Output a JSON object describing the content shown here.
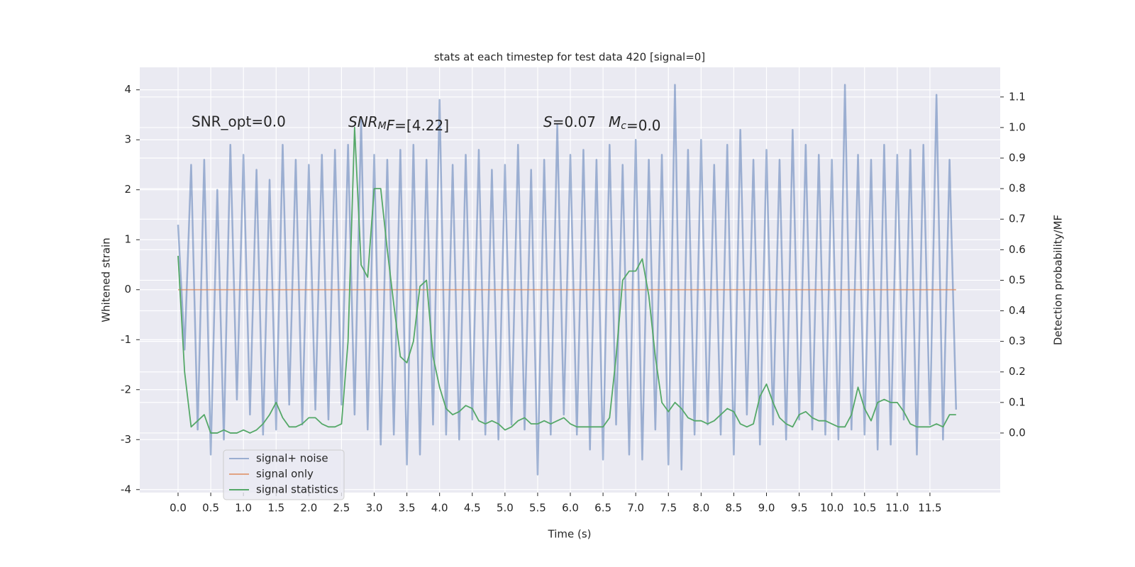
{
  "chart_data": {
    "type": "line",
    "title": "stats at each timestep for test data 420 [signal=0]",
    "xlabel": "Time (s)",
    "ylabel": "Whitened strain",
    "y2label": "Detection probability/MF",
    "annotations": [
      {
        "text": "SNR_opt=0.0",
        "math": false
      },
      {
        "text": "SNR_MF=[4.22]",
        "math": true
      },
      {
        "text": "S=0.07",
        "math": true
      },
      {
        "text": "M_c=0.0",
        "math": true
      }
    ],
    "x": [
      0.0,
      0.1,
      0.2,
      0.3,
      0.4,
      0.5,
      0.6,
      0.7,
      0.8,
      0.9,
      1.0,
      1.1,
      1.2,
      1.3,
      1.4,
      1.5,
      1.6,
      1.7,
      1.8,
      1.9,
      2.0,
      2.1,
      2.2,
      2.3,
      2.4,
      2.5,
      2.6,
      2.7,
      2.8,
      2.9,
      3.0,
      3.1,
      3.2,
      3.3,
      3.4,
      3.5,
      3.6,
      3.7,
      3.8,
      3.9,
      4.0,
      4.1,
      4.2,
      4.3,
      4.4,
      4.5,
      4.6,
      4.7,
      4.8,
      4.9,
      5.0,
      5.1,
      5.2,
      5.3,
      5.4,
      5.5,
      5.6,
      5.7,
      5.8,
      5.9,
      6.0,
      6.1,
      6.2,
      6.3,
      6.4,
      6.5,
      6.6,
      6.7,
      6.8,
      6.9,
      7.0,
      7.1,
      7.2,
      7.3,
      7.4,
      7.5,
      7.6,
      7.7,
      7.8,
      7.9,
      8.0,
      8.1,
      8.2,
      8.3,
      8.4,
      8.5,
      8.6,
      8.7,
      8.8,
      8.9,
      9.0,
      9.1,
      9.2,
      9.3,
      9.4,
      9.5,
      9.6,
      9.7,
      9.8,
      9.9,
      10.0,
      10.1,
      10.2,
      10.3,
      10.4,
      10.5,
      10.6,
      10.7,
      10.8,
      10.9,
      11.0,
      11.1,
      11.2,
      11.3,
      11.4,
      11.5,
      11.6,
      11.7,
      11.8,
      11.9
    ],
    "series": [
      {
        "name": "signal+ noise",
        "color": "#4c72b0",
        "opacity": 0.5,
        "values": [
          1.3,
          -1.2,
          2.5,
          -2.8,
          2.6,
          -3.3,
          2.0,
          -3.0,
          2.9,
          -2.2,
          2.7,
          -2.5,
          2.4,
          -2.9,
          2.2,
          -2.8,
          2.9,
          -2.3,
          2.6,
          -2.7,
          2.5,
          -2.4,
          2.7,
          -2.6,
          2.8,
          -2.3,
          2.9,
          -2.5,
          3.4,
          -2.8,
          2.7,
          -3.1,
          2.6,
          -2.9,
          2.8,
          -3.5,
          2.9,
          -3.3,
          2.6,
          -2.7,
          3.8,
          -2.9,
          2.5,
          -3.0,
          2.7,
          -2.6,
          2.8,
          -2.9,
          2.4,
          -3.0,
          2.5,
          -2.7,
          2.9,
          -2.8,
          2.4,
          -3.7,
          2.6,
          -2.9,
          3.3,
          -2.5,
          2.7,
          -2.9,
          2.8,
          -3.2,
          2.6,
          -3.4,
          2.9,
          -2.7,
          2.5,
          -3.3,
          3.0,
          -3.4,
          2.6,
          -2.8,
          2.7,
          -3.5,
          4.1,
          -3.6,
          2.8,
          -2.9,
          3.0,
          -2.7,
          2.5,
          -2.9,
          2.9,
          -3.3,
          3.2,
          -2.5,
          2.6,
          -3.1,
          2.8,
          -2.7,
          2.6,
          -3.0,
          3.2,
          -2.6,
          2.9,
          -2.8,
          2.7,
          -2.9,
          2.6,
          -3.0,
          4.1,
          -2.8,
          2.7,
          -2.9,
          2.6,
          -3.2,
          2.9,
          -3.1,
          2.7,
          -2.6,
          2.8,
          -3.3,
          2.9,
          -2.7,
          3.9,
          -3.0,
          2.6,
          -2.4
        ]
      },
      {
        "name": "signal only",
        "color": "#dd8452",
        "opacity": 0.7,
        "values": [
          0,
          0,
          0,
          0,
          0,
          0,
          0,
          0,
          0,
          0,
          0,
          0,
          0,
          0,
          0,
          0,
          0,
          0,
          0,
          0,
          0,
          0,
          0,
          0,
          0,
          0,
          0,
          0,
          0,
          0,
          0,
          0,
          0,
          0,
          0,
          0,
          0,
          0,
          0,
          0,
          0,
          0,
          0,
          0,
          0,
          0,
          0,
          0,
          0,
          0,
          0,
          0,
          0,
          0,
          0,
          0,
          0,
          0,
          0,
          0,
          0,
          0,
          0,
          0,
          0,
          0,
          0,
          0,
          0,
          0,
          0,
          0,
          0,
          0,
          0,
          0,
          0,
          0,
          0,
          0,
          0,
          0,
          0,
          0,
          0,
          0,
          0,
          0,
          0,
          0,
          0,
          0,
          0,
          0,
          0,
          0,
          0,
          0,
          0,
          0,
          0,
          0,
          0,
          0,
          0,
          0,
          0,
          0,
          0,
          0,
          0,
          0,
          0,
          0,
          0,
          0,
          0,
          0,
          0,
          0
        ]
      },
      {
        "name": "signal statistics",
        "color": "#55a868",
        "opacity": 1,
        "axis": "y2",
        "values": [
          0.58,
          0.2,
          0.02,
          0.04,
          0.06,
          0.0,
          0.0,
          0.01,
          0.0,
          0.0,
          0.01,
          0.0,
          0.01,
          0.03,
          0.06,
          0.1,
          0.05,
          0.02,
          0.02,
          0.03,
          0.05,
          0.05,
          0.03,
          0.02,
          0.02,
          0.03,
          0.3,
          1.0,
          0.55,
          0.51,
          0.8,
          0.8,
          0.6,
          0.42,
          0.25,
          0.23,
          0.3,
          0.48,
          0.5,
          0.25,
          0.15,
          0.08,
          0.06,
          0.07,
          0.09,
          0.08,
          0.04,
          0.03,
          0.04,
          0.03,
          0.01,
          0.02,
          0.04,
          0.05,
          0.03,
          0.03,
          0.04,
          0.03,
          0.04,
          0.05,
          0.03,
          0.02,
          0.02,
          0.02,
          0.02,
          0.02,
          0.05,
          0.25,
          0.5,
          0.53,
          0.53,
          0.57,
          0.45,
          0.25,
          0.1,
          0.07,
          0.1,
          0.08,
          0.05,
          0.04,
          0.04,
          0.03,
          0.04,
          0.06,
          0.08,
          0.07,
          0.03,
          0.02,
          0.03,
          0.12,
          0.16,
          0.1,
          0.05,
          0.03,
          0.02,
          0.06,
          0.07,
          0.05,
          0.04,
          0.04,
          0.03,
          0.02,
          0.02,
          0.06,
          0.15,
          0.08,
          0.04,
          0.1,
          0.11,
          0.1,
          0.1,
          0.07,
          0.03,
          0.02,
          0.02,
          0.02,
          0.03,
          0.02,
          0.06,
          0.06
        ]
      }
    ],
    "xlim": [
      -0.586,
      12.575
    ],
    "xticks": [
      {
        "value": 0,
        "label": "0.0"
      },
      0.5,
      {
        "value": 1,
        "label": "1.0"
      },
      1.5,
      {
        "value": 2,
        "label": "2.0"
      },
      2.5,
      {
        "value": 3,
        "label": "3.0"
      },
      3.5,
      {
        "value": 4,
        "label": "4.0"
      },
      4.5,
      {
        "value": 5,
        "label": "5.0"
      },
      5.5,
      {
        "value": 6,
        "label": "6.0"
      },
      6.5,
      {
        "value": 7,
        "label": "7.0"
      },
      7.5,
      {
        "value": 8,
        "label": "8.0"
      },
      8.5,
      {
        "value": 9,
        "label": "9.0"
      },
      9.5,
      {
        "value": 10,
        "label": "10.0"
      },
      10.5,
      {
        "value": 11,
        "label": "11.0"
      },
      11.5
    ],
    "ylim": [
      -4.06,
      4.45
    ],
    "yticks": [
      -4,
      -3,
      -2,
      -1,
      0,
      1,
      2,
      3,
      4
    ],
    "y2lim": [
      -0.195,
      1.197
    ],
    "y2ticks": [
      {
        "value": 0,
        "label": "0.0"
      },
      0.1,
      0.2,
      0.3,
      0.4,
      0.5,
      0.6,
      0.7,
      0.8,
      0.9,
      {
        "value": 1,
        "label": "1.0"
      },
      1.1
    ],
    "grid": true,
    "legend": "lower left"
  }
}
